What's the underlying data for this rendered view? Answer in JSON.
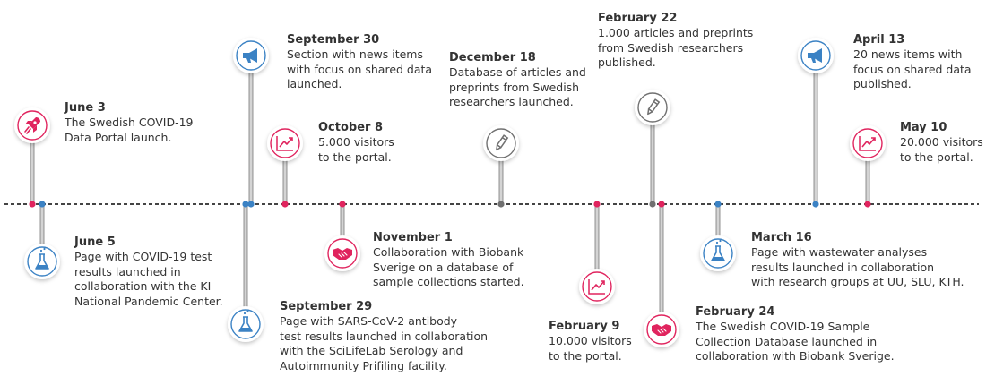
{
  "colors": {
    "pink": "#e0245e",
    "blue": "#3b82c4",
    "gray": "#707070",
    "axis": "#444444",
    "text": "#333333"
  },
  "events": [
    {
      "id": "jun3",
      "date": "June 3",
      "desc": "The Swedish COVID-19\nData Portal launch.",
      "icon": "rocket-icon",
      "color": "pink"
    },
    {
      "id": "jun5",
      "date": "June 5",
      "desc": "Page with COVID-19 test\nresults launched in\ncollaboration with the KI\nNational Pandemic Center.",
      "icon": "flask-icon",
      "color": "blue"
    },
    {
      "id": "sep30",
      "date": "September 30",
      "desc": "Section with news items\nwith focus on shared data\nlaunched.",
      "icon": "megaphone-icon",
      "color": "blue"
    },
    {
      "id": "sep29",
      "date": "September 29",
      "desc": "Page with SARS-CoV-2 antibody\ntest results launched in collaboration\nwith the SciLifeLab Serology and\nAutoimmunity Prifiling facility.",
      "icon": "flask-icon",
      "color": "blue"
    },
    {
      "id": "oct8",
      "date": "October 8",
      "desc": "5.000 visitors\nto the portal.",
      "icon": "chart-icon",
      "color": "pink"
    },
    {
      "id": "nov1",
      "date": "November 1",
      "desc": "Collaboration with Biobank\nSverige on a database of\nsample collections started.",
      "icon": "handshake-icon",
      "color": "pink"
    },
    {
      "id": "dec18",
      "date": "December 18",
      "desc": "Database of articles and\npreprints from Swedish\nresearchers launched.",
      "icon": "pencil-icon",
      "color": "gray"
    },
    {
      "id": "feb9",
      "date": "February 9",
      "desc": "10.000 visitors\nto the portal.",
      "icon": "chart-icon",
      "color": "pink"
    },
    {
      "id": "feb22",
      "date": "February 22",
      "desc": "1.000 articles and preprints\nfrom Swedish researchers\npublished.",
      "icon": "pencil-icon",
      "color": "gray"
    },
    {
      "id": "feb24",
      "date": "February 24",
      "desc": "The Swedish COVID-19 Sample\nCollection Database launched in\ncollaboration with Biobank Sverige.",
      "icon": "handshake-icon",
      "color": "pink"
    },
    {
      "id": "mar16",
      "date": "March 16",
      "desc": "Page with wastewater analyses\nresults launched in collaboration\nwith research groups at UU, SLU, KTH.",
      "icon": "flask-icon",
      "color": "blue"
    },
    {
      "id": "apr13",
      "date": "April 13",
      "desc": "20 news items with\nfocus on shared data\npublished.",
      "icon": "megaphone-icon",
      "color": "blue"
    },
    {
      "id": "may10",
      "date": "May 10",
      "desc": "20.000 visitors\nto the portal.",
      "icon": "chart-icon",
      "color": "pink"
    }
  ]
}
